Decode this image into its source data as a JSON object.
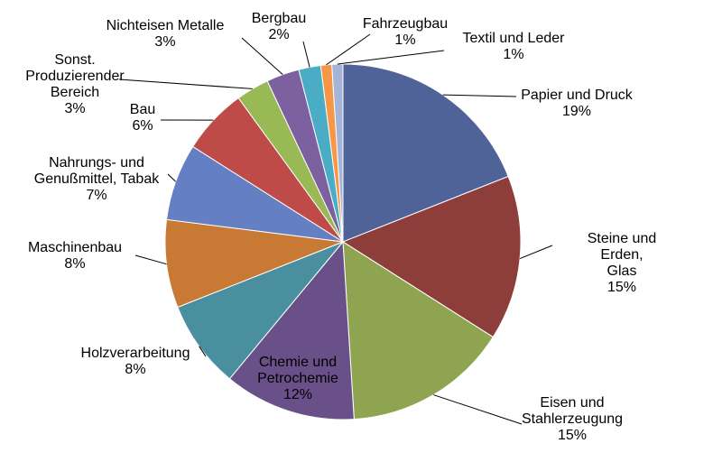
{
  "chart_data": {
    "type": "pie",
    "categories": [
      "Papier und Druck",
      "Steine und Erden,\nGlas",
      "Eisen und\nStahlerzeugung",
      "Chemie und\nPetrochemie",
      "Holzverarbeitung",
      "Maschinenbau",
      "Nahrungs- und\nGenußmittel, Tabak",
      "Bau",
      "Sonst.\nProduzierender\nBereich",
      "Nichteisen Metalle",
      "Bergbau",
      "Fahrzeugbau",
      "Textil und Leder"
    ],
    "values": [
      19,
      15,
      15,
      12,
      8,
      8,
      7,
      6,
      3,
      3,
      2,
      1,
      1
    ],
    "value_labels": [
      "19%",
      "15%",
      "15%",
      "12%",
      "8%",
      "8%",
      "7%",
      "6%",
      "3%",
      "3%",
      "2%",
      "1%",
      "1%"
    ],
    "colors": [
      "#4f6398",
      "#8e3e3a",
      "#8ea450",
      "#6a5088",
      "#4a8fa0",
      "#c87a35",
      "#6580c2",
      "#be4b48",
      "#98b954",
      "#7d60a0",
      "#4bacc6",
      "#f79646",
      "#a5b5d8"
    ]
  }
}
